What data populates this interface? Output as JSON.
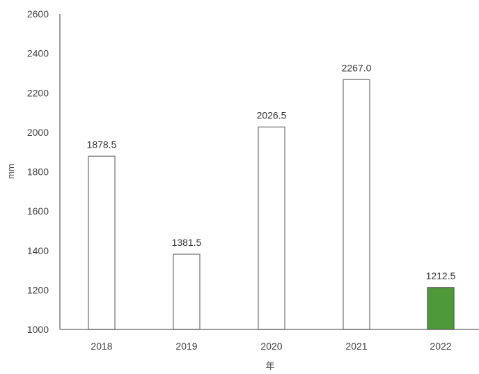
{
  "chart_data": {
    "type": "bar",
    "categories": [
      "2018",
      "2019",
      "2020",
      "2021",
      "2022"
    ],
    "values": [
      1878.5,
      1381.5,
      2026.5,
      2267.0,
      1212.5
    ],
    "data_labels": [
      "1878.5",
      "1381.5",
      "2026.5",
      "2267.0",
      "1212.5"
    ],
    "yticks": [
      "1000",
      "1200",
      "1400",
      "1600",
      "1800",
      "2000",
      "2200",
      "2400",
      "2600"
    ],
    "ylim": [
      1000,
      2600
    ],
    "xlabel": "年",
    "ylabel": "mm",
    "title": "",
    "grid": false,
    "legend": "none",
    "bar_fill": [
      "#ffffff",
      "#ffffff",
      "#ffffff",
      "#ffffff",
      "#4e9a3a"
    ],
    "bar_stroke": [
      "#7a7a7a",
      "#7a7a7a",
      "#7a7a7a",
      "#7a7a7a",
      "#5a5a5a"
    ],
    "highlight_color": "#4e9a3a"
  }
}
